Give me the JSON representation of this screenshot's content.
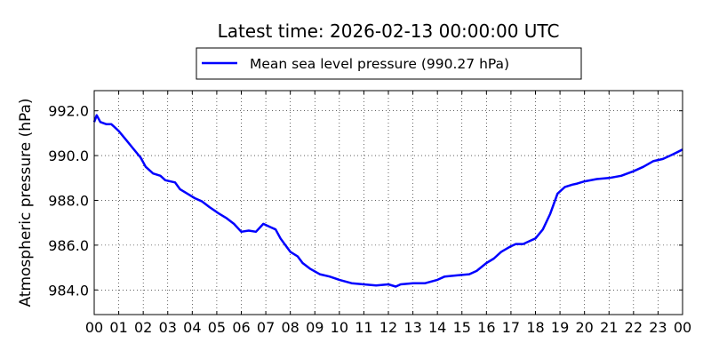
{
  "chart_data": {
    "type": "line",
    "title": "Latest time: 2026-02-13 00:00:00 UTC",
    "xlabel": "",
    "ylabel": "Atmospheric pressure (hPa)",
    "xlim": [
      0,
      24
    ],
    "ylim": [
      982.9,
      992.9
    ],
    "grid": true,
    "legend_position": "top-center",
    "x_ticks": [
      {
        "value": 0,
        "label": "00"
      },
      {
        "value": 1,
        "label": "01"
      },
      {
        "value": 2,
        "label": "02"
      },
      {
        "value": 3,
        "label": "03"
      },
      {
        "value": 4,
        "label": "04"
      },
      {
        "value": 5,
        "label": "05"
      },
      {
        "value": 6,
        "label": "06"
      },
      {
        "value": 7,
        "label": "07"
      },
      {
        "value": 8,
        "label": "08"
      },
      {
        "value": 9,
        "label": "09"
      },
      {
        "value": 10,
        "label": "10"
      },
      {
        "value": 11,
        "label": "11"
      },
      {
        "value": 12,
        "label": "12"
      },
      {
        "value": 13,
        "label": "13"
      },
      {
        "value": 14,
        "label": "14"
      },
      {
        "value": 15,
        "label": "15"
      },
      {
        "value": 16,
        "label": "16"
      },
      {
        "value": 17,
        "label": "17"
      },
      {
        "value": 18,
        "label": "18"
      },
      {
        "value": 19,
        "label": "19"
      },
      {
        "value": 20,
        "label": "20"
      },
      {
        "value": 21,
        "label": "21"
      },
      {
        "value": 22,
        "label": "22"
      },
      {
        "value": 23,
        "label": "23"
      },
      {
        "value": 24,
        "label": "00"
      }
    ],
    "y_ticks": [
      {
        "value": 984.0,
        "label": "984.0"
      },
      {
        "value": 986.0,
        "label": "986.0"
      },
      {
        "value": 988.0,
        "label": "988.0"
      },
      {
        "value": 990.0,
        "label": "990.0"
      },
      {
        "value": 992.0,
        "label": "992.0"
      }
    ],
    "series": [
      {
        "name": "Mean sea level pressure (990.27 hPa)",
        "color": "#0000ff",
        "x": [
          0,
          0.1,
          0.25,
          0.5,
          0.7,
          0.8,
          1.0,
          1.3,
          1.6,
          1.9,
          2.1,
          2.4,
          2.7,
          2.9,
          3.3,
          3.5,
          3.8,
          4.1,
          4.4,
          4.7,
          4.9,
          5.1,
          5.4,
          5.7,
          6.0,
          6.3,
          6.6,
          6.9,
          7.2,
          7.4,
          7.6,
          7.8,
          8.0,
          8.3,
          8.5,
          8.8,
          9.2,
          9.6,
          10.0,
          10.5,
          11.0,
          11.5,
          12.0,
          12.3,
          12.5,
          13.0,
          13.5,
          14.0,
          14.3,
          14.8,
          15.3,
          15.6,
          16.0,
          16.3,
          16.6,
          17.0,
          17.2,
          17.5,
          17.8,
          18.0,
          18.3,
          18.6,
          18.9,
          19.2,
          19.5,
          19.7,
          20.0,
          20.5,
          21.0,
          21.5,
          22.0,
          22.4,
          22.8,
          23.2,
          23.6,
          24.0
        ],
        "y": [
          991.5,
          991.8,
          991.5,
          991.4,
          991.4,
          991.3,
          991.1,
          990.7,
          990.3,
          989.9,
          989.5,
          989.2,
          989.1,
          988.9,
          988.8,
          988.5,
          988.3,
          988.1,
          987.95,
          987.7,
          987.55,
          987.4,
          987.2,
          986.95,
          986.6,
          986.65,
          986.6,
          986.95,
          986.8,
          986.7,
          986.3,
          986.0,
          985.7,
          985.5,
          985.2,
          984.95,
          984.7,
          984.6,
          984.45,
          984.3,
          984.25,
          984.2,
          984.25,
          984.15,
          984.25,
          984.3,
          984.3,
          984.45,
          984.6,
          984.65,
          984.7,
          984.85,
          985.2,
          985.4,
          985.7,
          985.95,
          986.05,
          986.05,
          986.2,
          986.3,
          986.7,
          987.4,
          988.3,
          988.6,
          988.7,
          988.75,
          988.85,
          988.95,
          989.0,
          989.1,
          989.3,
          989.5,
          989.75,
          989.85,
          990.05,
          990.27
        ]
      }
    ]
  }
}
